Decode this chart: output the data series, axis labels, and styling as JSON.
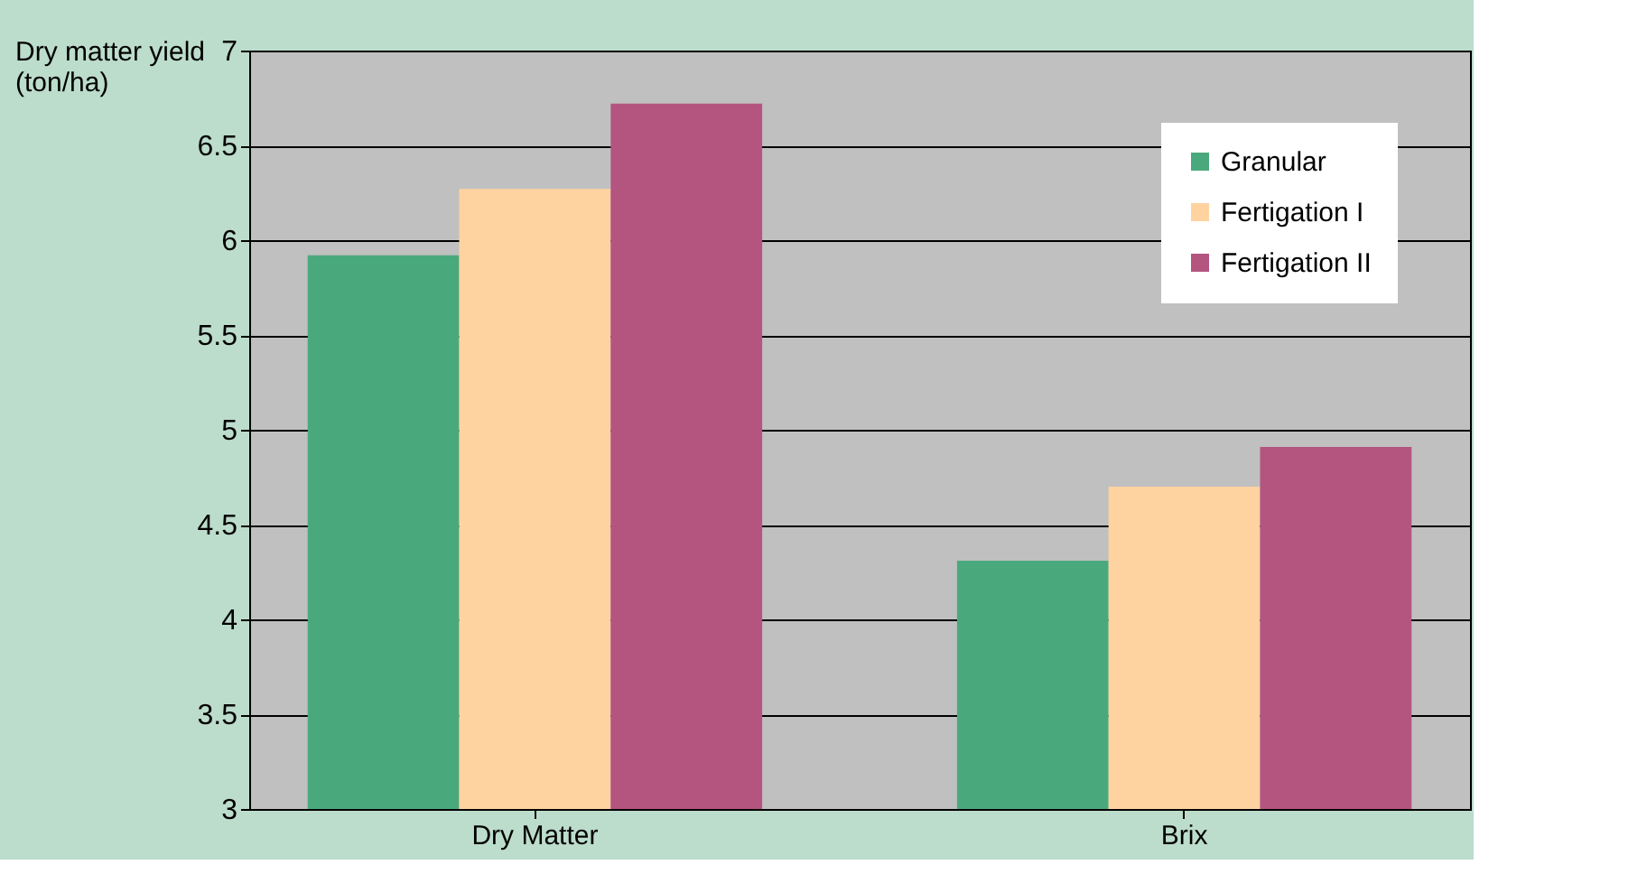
{
  "chart_data": {
    "type": "bar",
    "ylabel": "Dry matter yield (ton/ha)",
    "categories": [
      "Dry Matter",
      "Brix"
    ],
    "series": [
      {
        "name": "Granular",
        "color": "#4aa97c",
        "values": [
          5.92,
          4.31
        ]
      },
      {
        "name": "Fertigation I",
        "color": "#ffd3a0",
        "values": [
          6.27,
          4.7
        ]
      },
      {
        "name": "Fertigation II",
        "color": "#b3557f",
        "values": [
          6.72,
          4.91
        ]
      }
    ],
    "ylim": [
      3,
      7
    ],
    "yticks": [
      3,
      3.5,
      4,
      4.5,
      5,
      5.5,
      6,
      6.5,
      7
    ],
    "grid": "y",
    "legend": "top right"
  }
}
